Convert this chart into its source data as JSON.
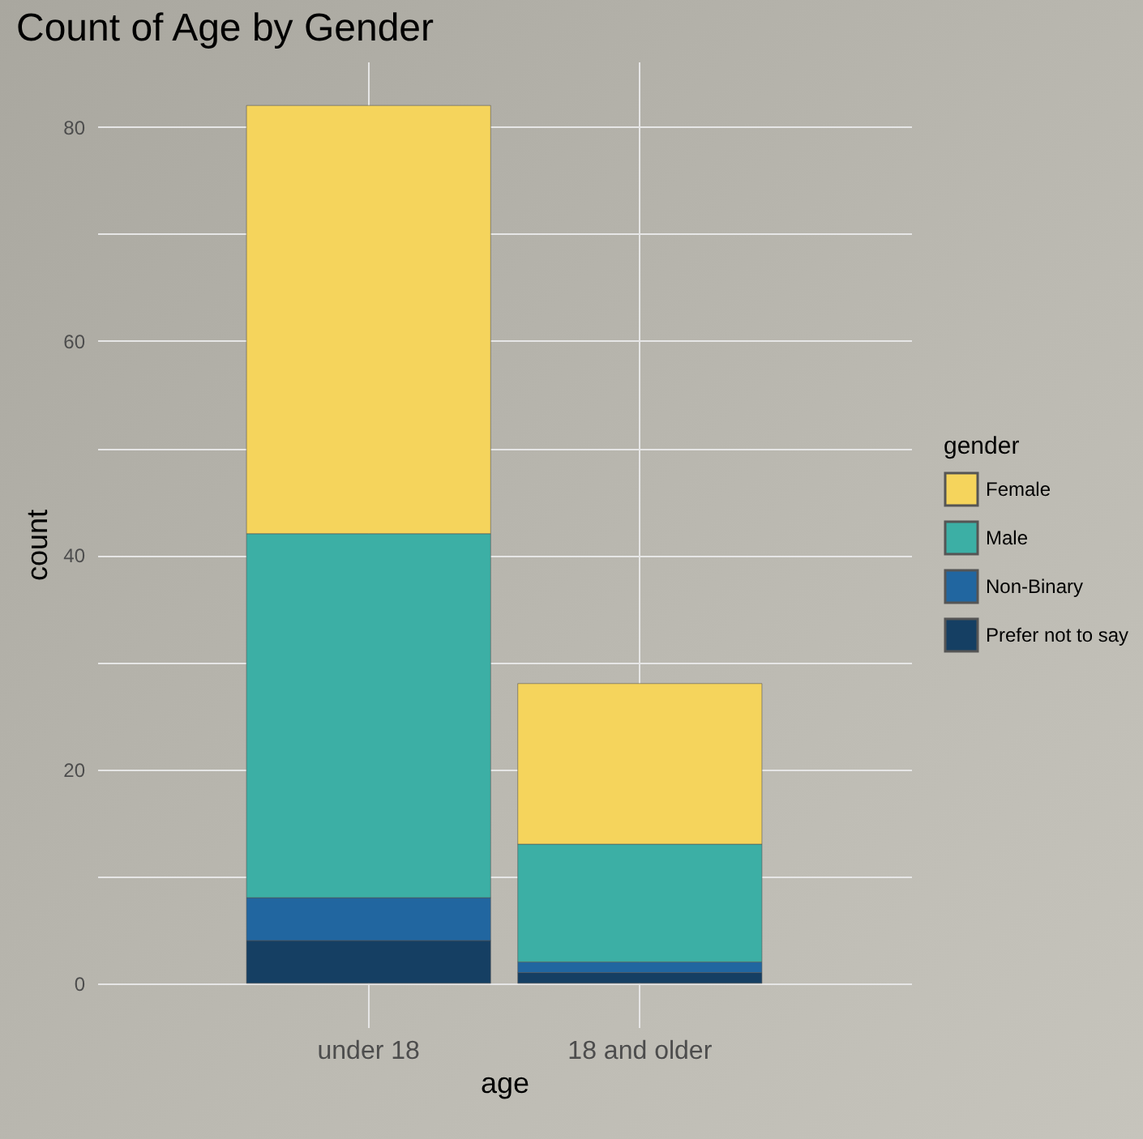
{
  "chart_data": {
    "type": "bar",
    "title": "Count of Age by Gender",
    "xlabel": "age",
    "ylabel": "count",
    "legend_title": "gender",
    "categories": [
      "under 18",
      "18 and older"
    ],
    "stacked": true,
    "series": [
      {
        "name": "Prefer not to say",
        "color": "#153f63",
        "values": [
          4,
          1
        ]
      },
      {
        "name": "Non-Binary",
        "color": "#2166a0",
        "values": [
          4,
          1
        ]
      },
      {
        "name": "Male",
        "color": "#3cafa5",
        "values": [
          34,
          11
        ]
      },
      {
        "name": "Female",
        "color": "#f5d45c",
        "values": [
          40,
          15
        ]
      }
    ],
    "ylim": [
      -4.1,
      86.1
    ],
    "yticks": [
      0,
      {
        "value": 10,
        "label": null
      },
      20,
      {
        "value": 30,
        "label": null
      },
      40,
      {
        "value": 50,
        "label": null
      },
      60,
      {
        "value": 70,
        "label": null
      },
      80
    ],
    "grid": true,
    "legend": "right"
  }
}
